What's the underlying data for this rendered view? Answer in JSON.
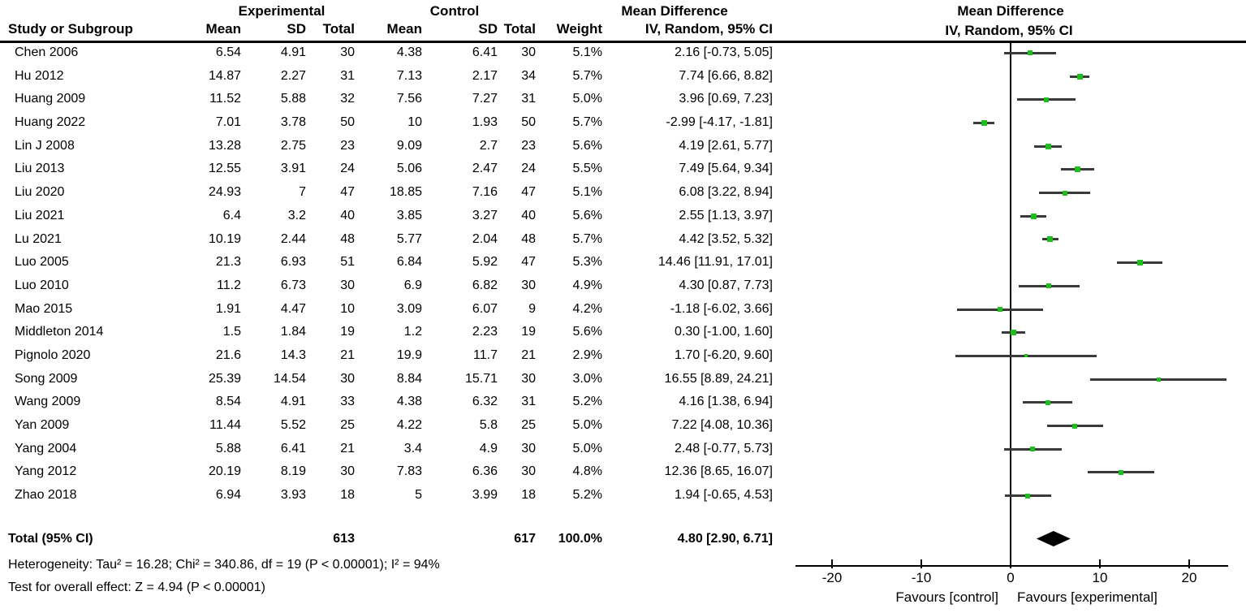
{
  "chart_data": {
    "type": "scatter",
    "subtype": "forest-plot-meta-analysis",
    "effect_measure": "Mean Difference",
    "model": "IV, Random, 95% CI",
    "left_header_groups": {
      "experimental": "Experimental",
      "control": "Control",
      "mean_difference": "Mean Difference"
    },
    "right_header": {
      "line1": "Mean Difference",
      "line2": "IV, Random, 95% CI"
    },
    "columns": [
      "Study or Subgroup",
      "Mean",
      "SD",
      "Total",
      "Mean",
      "SD",
      "Total",
      "Weight",
      "IV, Random, 95% CI"
    ],
    "studies": [
      {
        "name": "Chen 2006",
        "exp_mean": "6.54",
        "exp_sd": "4.91",
        "exp_total": "30",
        "ctl_mean": "4.38",
        "ctl_sd": "6.41",
        "ctl_total": "30",
        "weight": "5.1%",
        "ci_text": "2.16 [-0.73, 5.05]",
        "md": 2.16,
        "lo": -0.73,
        "hi": 5.05,
        "w": 5.1
      },
      {
        "name": "Hu 2012",
        "exp_mean": "14.87",
        "exp_sd": "2.27",
        "exp_total": "31",
        "ctl_mean": "7.13",
        "ctl_sd": "2.17",
        "ctl_total": "34",
        "weight": "5.7%",
        "ci_text": "7.74 [6.66, 8.82]",
        "md": 7.74,
        "lo": 6.66,
        "hi": 8.82,
        "w": 5.7
      },
      {
        "name": "Huang 2009",
        "exp_mean": "11.52",
        "exp_sd": "5.88",
        "exp_total": "32",
        "ctl_mean": "7.56",
        "ctl_sd": "7.27",
        "ctl_total": "31",
        "weight": "5.0%",
        "ci_text": "3.96 [0.69, 7.23]",
        "md": 3.96,
        "lo": 0.69,
        "hi": 7.23,
        "w": 5.0
      },
      {
        "name": "Huang 2022",
        "exp_mean": "7.01",
        "exp_sd": "3.78",
        "exp_total": "50",
        "ctl_mean": "10",
        "ctl_sd": "1.93",
        "ctl_total": "50",
        "weight": "5.7%",
        "ci_text": "-2.99 [-4.17, -1.81]",
        "md": -2.99,
        "lo": -4.17,
        "hi": -1.81,
        "w": 5.7
      },
      {
        "name": "Lin J 2008",
        "exp_mean": "13.28",
        "exp_sd": "2.75",
        "exp_total": "23",
        "ctl_mean": "9.09",
        "ctl_sd": "2.7",
        "ctl_total": "23",
        "weight": "5.6%",
        "ci_text": "4.19 [2.61, 5.77]",
        "md": 4.19,
        "lo": 2.61,
        "hi": 5.77,
        "w": 5.6
      },
      {
        "name": "Liu 2013",
        "exp_mean": "12.55",
        "exp_sd": "3.91",
        "exp_total": "24",
        "ctl_mean": "5.06",
        "ctl_sd": "2.47",
        "ctl_total": "24",
        "weight": "5.5%",
        "ci_text": "7.49 [5.64, 9.34]",
        "md": 7.49,
        "lo": 5.64,
        "hi": 9.34,
        "w": 5.5
      },
      {
        "name": "Liu 2020",
        "exp_mean": "24.93",
        "exp_sd": "7",
        "exp_total": "47",
        "ctl_mean": "18.85",
        "ctl_sd": "7.16",
        "ctl_total": "47",
        "weight": "5.1%",
        "ci_text": "6.08 [3.22, 8.94]",
        "md": 6.08,
        "lo": 3.22,
        "hi": 8.94,
        "w": 5.1
      },
      {
        "name": "Liu 2021",
        "exp_mean": "6.4",
        "exp_sd": "3.2",
        "exp_total": "40",
        "ctl_mean": "3.85",
        "ctl_sd": "3.27",
        "ctl_total": "40",
        "weight": "5.6%",
        "ci_text": "2.55 [1.13, 3.97]",
        "md": 2.55,
        "lo": 1.13,
        "hi": 3.97,
        "w": 5.6
      },
      {
        "name": "Lu 2021",
        "exp_mean": "10.19",
        "exp_sd": "2.44",
        "exp_total": "48",
        "ctl_mean": "5.77",
        "ctl_sd": "2.04",
        "ctl_total": "48",
        "weight": "5.7%",
        "ci_text": "4.42 [3.52, 5.32]",
        "md": 4.42,
        "lo": 3.52,
        "hi": 5.32,
        "w": 5.7
      },
      {
        "name": "Luo 2005",
        "exp_mean": "21.3",
        "exp_sd": "6.93",
        "exp_total": "51",
        "ctl_mean": "6.84",
        "ctl_sd": "5.92",
        "ctl_total": "47",
        "weight": "5.3%",
        "ci_text": "14.46 [11.91, 17.01]",
        "md": 14.46,
        "lo": 11.91,
        "hi": 17.01,
        "w": 5.3
      },
      {
        "name": "Luo 2010",
        "exp_mean": "11.2",
        "exp_sd": "6.73",
        "exp_total": "30",
        "ctl_mean": "6.9",
        "ctl_sd": "6.82",
        "ctl_total": "30",
        "weight": "4.9%",
        "ci_text": "4.30 [0.87, 7.73]",
        "md": 4.3,
        "lo": 0.87,
        "hi": 7.73,
        "w": 4.9
      },
      {
        "name": "Mao 2015",
        "exp_mean": "1.91",
        "exp_sd": "4.47",
        "exp_total": "10",
        "ctl_mean": "3.09",
        "ctl_sd": "6.07",
        "ctl_total": "9",
        "weight": "4.2%",
        "ci_text": "-1.18 [-6.02, 3.66]",
        "md": -1.18,
        "lo": -6.02,
        "hi": 3.66,
        "w": 4.2
      },
      {
        "name": "Middleton 2014",
        "exp_mean": "1.5",
        "exp_sd": "1.84",
        "exp_total": "19",
        "ctl_mean": "1.2",
        "ctl_sd": "2.23",
        "ctl_total": "19",
        "weight": "5.6%",
        "ci_text": "0.30 [-1.00, 1.60]",
        "md": 0.3,
        "lo": -1.0,
        "hi": 1.6,
        "w": 5.6
      },
      {
        "name": "Pignolo 2020",
        "exp_mean": "21.6",
        "exp_sd": "14.3",
        "exp_total": "21",
        "ctl_mean": "19.9",
        "ctl_sd": "11.7",
        "ctl_total": "21",
        "weight": "2.9%",
        "ci_text": "1.70 [-6.20, 9.60]",
        "md": 1.7,
        "lo": -6.2,
        "hi": 9.6,
        "w": 2.9
      },
      {
        "name": "Song 2009",
        "exp_mean": "25.39",
        "exp_sd": "14.54",
        "exp_total": "30",
        "ctl_mean": "8.84",
        "ctl_sd": "15.71",
        "ctl_total": "30",
        "weight": "3.0%",
        "ci_text": "16.55 [8.89, 24.21]",
        "md": 16.55,
        "lo": 8.89,
        "hi": 24.21,
        "w": 3.0
      },
      {
        "name": "Wang 2009",
        "exp_mean": "8.54",
        "exp_sd": "4.91",
        "exp_total": "33",
        "ctl_mean": "4.38",
        "ctl_sd": "6.32",
        "ctl_total": "31",
        "weight": "5.2%",
        "ci_text": "4.16 [1.38, 6.94]",
        "md": 4.16,
        "lo": 1.38,
        "hi": 6.94,
        "w": 5.2
      },
      {
        "name": "Yan 2009",
        "exp_mean": "11.44",
        "exp_sd": "5.52",
        "exp_total": "25",
        "ctl_mean": "4.22",
        "ctl_sd": "5.8",
        "ctl_total": "25",
        "weight": "5.0%",
        "ci_text": "7.22 [4.08, 10.36]",
        "md": 7.22,
        "lo": 4.08,
        "hi": 10.36,
        "w": 5.0
      },
      {
        "name": "Yang 2004",
        "exp_mean": "5.88",
        "exp_sd": "6.41",
        "exp_total": "21",
        "ctl_mean": "3.4",
        "ctl_sd": "4.9",
        "ctl_total": "30",
        "weight": "5.0%",
        "ci_text": "2.48 [-0.77, 5.73]",
        "md": 2.48,
        "lo": -0.77,
        "hi": 5.73,
        "w": 5.0
      },
      {
        "name": "Yang 2012",
        "exp_mean": "20.19",
        "exp_sd": "8.19",
        "exp_total": "30",
        "ctl_mean": "7.83",
        "ctl_sd": "6.36",
        "ctl_total": "30",
        "weight": "4.8%",
        "ci_text": "12.36 [8.65, 16.07]",
        "md": 12.36,
        "lo": 8.65,
        "hi": 16.07,
        "w": 4.8
      },
      {
        "name": "Zhao 2018",
        "exp_mean": "6.94",
        "exp_sd": "3.93",
        "exp_total": "18",
        "ctl_mean": "5",
        "ctl_sd": "3.99",
        "ctl_total": "18",
        "weight": "5.2%",
        "ci_text": "1.94 [-0.65, 4.53]",
        "md": 1.94,
        "lo": -0.65,
        "hi": 4.53,
        "w": 5.2
      }
    ],
    "total": {
      "label": "Total (95% CI)",
      "exp_total": "613",
      "ctl_total": "617",
      "weight": "100.0%",
      "ci_text": "4.80 [2.90, 6.71]",
      "md": 4.8,
      "lo": 2.9,
      "hi": 6.71
    },
    "heterogeneity": "Heterogeneity: Tau² = 16.28; Chi² = 340.86, df = 19 (P < 0.00001); I² = 94%",
    "overall_effect": "Test for overall effect: Z = 4.94 (P < 0.00001)",
    "axis": {
      "ticks": [
        -20,
        -10,
        0,
        10,
        20
      ],
      "xlim": [
        -24.2,
        24.4
      ],
      "favours_left": "Favours [control]",
      "favours_right": "Favours [experimental]"
    },
    "colors": {
      "marker_green": "#1EBE1E",
      "ci_line": "#3A3A3A",
      "diamond": "#000000",
      "text": "#000000"
    }
  }
}
